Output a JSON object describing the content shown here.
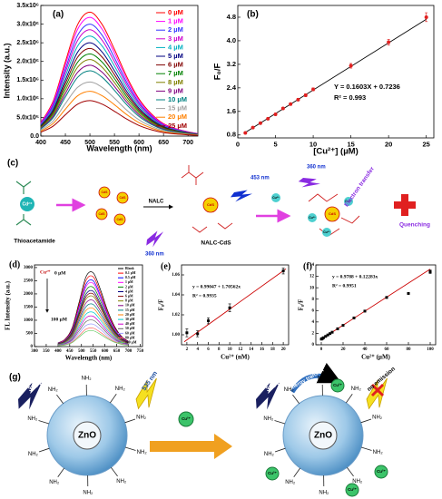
{
  "chart_data": [
    {
      "type": "line",
      "label": "(a)",
      "xlabel": "Wavelength  (nm)",
      "ylabel": "Intensity (a.u.)",
      "legend": "upper right",
      "x": [
        400,
        425,
        450,
        475,
        500,
        525,
        550,
        575,
        600,
        625,
        650,
        675,
        700,
        720
      ],
      "series": [
        {
          "name": "0 µM",
          "color": "#ff0000",
          "values": [
            365000,
            930000,
            1992000,
            2988000,
            3320000,
            2988000,
            2324000,
            1594000,
            996000,
            598000,
            332000,
            199000,
            116000,
            66000
          ]
        },
        {
          "name": "1 µM",
          "color": "#ff00ff",
          "values": [
            350000,
            890000,
            1908000,
            2862000,
            3180000,
            2862000,
            2226000,
            1526000,
            954000,
            572000,
            318000,
            191000,
            111000,
            64000
          ]
        },
        {
          "name": "2 µM",
          "color": "#3333ff",
          "values": [
            330000,
            840000,
            1800000,
            2700000,
            3000000,
            2700000,
            2100000,
            1440000,
            900000,
            540000,
            300000,
            180000,
            105000,
            60000
          ]
        },
        {
          "name": "3 µM",
          "color": "#cc00cc",
          "values": [
            314000,
            798000,
            1710000,
            2565000,
            2850000,
            2565000,
            1995000,
            1368000,
            855000,
            513000,
            285000,
            171000,
            100000,
            57000
          ]
        },
        {
          "name": "4 µM",
          "color": "#00b0c0",
          "values": [
            295000,
            750000,
            1608000,
            2412000,
            2680000,
            2412000,
            1876000,
            1286000,
            804000,
            482000,
            268000,
            161000,
            94000,
            54000
          ]
        },
        {
          "name": "5 µM",
          "color": "#000080",
          "values": [
            275000,
            700000,
            1500000,
            2250000,
            2500000,
            2250000,
            1750000,
            1200000,
            750000,
            450000,
            250000,
            150000,
            88000,
            50000
          ]
        },
        {
          "name": "6 µM",
          "color": "#800000",
          "values": [
            259000,
            658000,
            1410000,
            2115000,
            2350000,
            2115000,
            1645000,
            1128000,
            705000,
            423000,
            235000,
            141000,
            82000,
            47000
          ]
        },
        {
          "name": "7 µM",
          "color": "#008000",
          "values": [
            242000,
            616000,
            1320000,
            1980000,
            2200000,
            1980000,
            1540000,
            1056000,
            660000,
            396000,
            220000,
            132000,
            77000,
            44000
          ]
        },
        {
          "name": "8 µM",
          "color": "#808000",
          "values": [
            226000,
            574000,
            1230000,
            1845000,
            2050000,
            1845000,
            1435000,
            984000,
            615000,
            369000,
            205000,
            123000,
            72000,
            41000
          ]
        },
        {
          "name": "9 µM",
          "color": "#800080",
          "values": [
            209000,
            532000,
            1140000,
            1710000,
            1900000,
            1710000,
            1330000,
            912000,
            570000,
            342000,
            190000,
            114000,
            67000,
            38000
          ]
        },
        {
          "name": "10 µM",
          "color": "#008080",
          "values": [
            193000,
            490000,
            1050000,
            1575000,
            1750000,
            1575000,
            1225000,
            840000,
            525000,
            315000,
            175000,
            105000,
            61000,
            35000
          ]
        },
        {
          "name": "15 µM",
          "color": "#a0a0a0",
          "values": [
            160000,
            406000,
            870000,
            1305000,
            1450000,
            1305000,
            1015000,
            696000,
            435000,
            261000,
            145000,
            87000,
            51000,
            29000
          ]
        },
        {
          "name": "20 µM",
          "color": "#ff8000",
          "values": [
            132000,
            336000,
            720000,
            1080000,
            1200000,
            1080000,
            840000,
            576000,
            360000,
            216000,
            120000,
            72000,
            42000,
            24000
          ]
        },
        {
          "name": "25 µM",
          "color": "#a00000",
          "values": [
            105000,
            266000,
            570000,
            855000,
            950000,
            855000,
            665000,
            456000,
            285000,
            171000,
            95000,
            57000,
            33000,
            19000
          ]
        }
      ],
      "xlim": [
        400,
        720
      ],
      "xticks": [
        400,
        450,
        500,
        550,
        600,
        650,
        700
      ],
      "ylim": [
        0,
        3500000
      ],
      "yticks": [
        {
          "value": 0,
          "label": "0.0"
        },
        {
          "value": 500000,
          "label": "5.0x10⁵"
        },
        {
          "value": 1000000,
          "label": "1.0x10⁶"
        },
        {
          "value": 1500000,
          "label": "1.5x10⁶"
        },
        {
          "value": 2000000,
          "label": "2.0x10⁶"
        },
        {
          "value": 2500000,
          "label": "2.5x10⁶"
        },
        {
          "value": 3000000,
          "label": "3.0x10⁶"
        },
        {
          "value": 3500000,
          "label": "3.5x10⁶"
        }
      ]
    },
    {
      "type": "scatter",
      "label": "(b)",
      "xlabel": "[Cu²⁺]  (µM)",
      "ylabel": "F₀/F",
      "color": "#e02020",
      "marker": "circle",
      "x": [
        1,
        2,
        3,
        4,
        5,
        6,
        7,
        8,
        9,
        10,
        15,
        20,
        25
      ],
      "values": [
        0.87,
        1.05,
        1.2,
        1.35,
        1.5,
        1.7,
        1.85,
        2.0,
        2.15,
        2.35,
        3.15,
        3.95,
        4.8
      ],
      "errors": [
        0.03,
        0.03,
        0.03,
        0.03,
        0.04,
        0.04,
        0.04,
        0.04,
        0.05,
        0.05,
        0.08,
        0.1,
        0.15
      ],
      "fit": {
        "x": [
          1,
          25
        ],
        "y": [
          0.884,
          4.731
        ],
        "color": "#000000"
      },
      "annotations": [
        "Y = 0.1603X + 0.7236",
        "R² = 0.993"
      ],
      "xlim": [
        0,
        26
      ],
      "xticks": [
        0,
        5,
        10,
        15,
        20,
        25
      ],
      "ylim": [
        0.7,
        5.2
      ],
      "yticks": [
        0.8,
        1.6,
        2.4,
        3.2,
        {
          "value": 4,
          "label": "4.0"
        },
        4.8
      ]
    },
    {
      "type": "line",
      "label": "(d)",
      "xlabel": "Wavelength (nm)",
      "ylabel": "FL Intensity (a.u.)",
      "legend": "right",
      "annotations": [
        "Cu²⁺",
        "0 µM",
        "100 µM"
      ],
      "x": [
        400,
        430,
        460,
        490,
        520,
        550,
        580,
        610,
        640,
        670,
        700
      ],
      "series": [
        {
          "name": "Blank",
          "color": "#000000",
          "values": [
            140,
            280,
            700,
            1680,
            2660,
            2800,
            2184,
            1400,
            784,
            392,
            196
          ]
        },
        {
          "name": "0.1 µM",
          "color": "#ff0000",
          "values": [
            133,
            265,
            663,
            1590,
            2518,
            2650,
            2067,
            1325,
            742,
            371,
            186
          ]
        },
        {
          "name": "0.5 µM",
          "color": "#0000ff",
          "values": [
            125,
            250,
            625,
            1500,
            2375,
            2500,
            1950,
            1250,
            700,
            350,
            175
          ]
        },
        {
          "name": "1 µM",
          "color": "#ff00ff",
          "values": [
            120,
            240,
            600,
            1440,
            2280,
            2400,
            1872,
            1200,
            672,
            336,
            168
          ]
        },
        {
          "name": "2 µM",
          "color": "#008000",
          "values": [
            113,
            225,
            563,
            1350,
            2138,
            2250,
            1755,
            1125,
            630,
            315,
            158
          ]
        },
        {
          "name": "4 µM",
          "color": "#000080",
          "values": [
            105,
            210,
            525,
            1260,
            1995,
            2100,
            1638,
            1050,
            588,
            294,
            147
          ]
        },
        {
          "name": "6 µM",
          "color": "#800000",
          "values": [
            100,
            200,
            500,
            1200,
            1900,
            2000,
            1560,
            1000,
            560,
            280,
            140
          ]
        },
        {
          "name": "8 µM",
          "color": "#808000",
          "values": [
            95,
            190,
            475,
            1140,
            1805,
            1900,
            1482,
            950,
            532,
            266,
            133
          ]
        },
        {
          "name": "10 µM",
          "color": "#800080",
          "values": [
            88,
            175,
            438,
            1050,
            1663,
            1750,
            1365,
            875,
            490,
            245,
            123
          ]
        },
        {
          "name": "15 µM",
          "color": "#008080",
          "values": [
            80,
            160,
            400,
            960,
            1520,
            1600,
            1248,
            800,
            448,
            224,
            112
          ]
        },
        {
          "name": "20 µM",
          "color": "#ff8000",
          "values": [
            73,
            145,
            363,
            870,
            1378,
            1450,
            1131,
            725,
            406,
            203,
            102
          ]
        },
        {
          "name": "30 µM",
          "color": "#00cccc",
          "values": [
            65,
            130,
            325,
            780,
            1235,
            1300,
            1014,
            650,
            364,
            182,
            91
          ]
        },
        {
          "name": "40 µM",
          "color": "#cc00cc",
          "values": [
            58,
            115,
            288,
            690,
            1093,
            1150,
            897,
            575,
            322,
            161,
            81
          ]
        },
        {
          "name": "50 µM",
          "color": "#666666",
          "values": [
            50,
            100,
            250,
            600,
            950,
            1000,
            780,
            500,
            280,
            140,
            70
          ]
        },
        {
          "name": "60 µM",
          "color": "#9999ff",
          "values": [
            43,
            85,
            213,
            510,
            808,
            850,
            663,
            425,
            238,
            119,
            60
          ]
        },
        {
          "name": "80 µM",
          "color": "#ff6666",
          "values": [
            35,
            70,
            175,
            420,
            665,
            700,
            546,
            350,
            196,
            98,
            49
          ]
        },
        {
          "name": "100 µM",
          "color": "#66cc66",
          "values": [
            30,
            60,
            150,
            360,
            570,
            600,
            468,
            300,
            168,
            84,
            42
          ]
        }
      ],
      "xlim": [
        300,
        760
      ],
      "xticks": [
        300,
        350,
        400,
        450,
        500,
        550,
        600,
        650,
        700,
        750
      ],
      "ylim": [
        0,
        3100
      ],
      "yticks": [
        0,
        500,
        1000,
        1500,
        2000,
        2500,
        3000
      ]
    },
    {
      "type": "scatter",
      "label": "(e)",
      "xlabel": "Cu²⁺ (nM)",
      "ylabel": "F₀/F",
      "color": "#000000",
      "marker": "square",
      "x": [
        2,
        4,
        6,
        10,
        20
      ],
      "values": [
        1.002,
        1.001,
        1.014,
        1.027,
        1.064
      ],
      "errors": [
        0.004,
        0.003,
        0.003,
        0.004,
        0.003
      ],
      "fit": {
        "x": [
          1.5,
          20.5
        ],
        "y": [
          0.993,
          1.066
        ],
        "color": "#cc0000"
      },
      "annotations": [
        "y = 0.99047 + 1.70562x",
        "R² = 0.9935"
      ],
      "xlim": [
        1,
        21
      ],
      "xticks": [
        2,
        4,
        6,
        8,
        10,
        12,
        14,
        16,
        18,
        20
      ],
      "ylim": [
        0.99,
        1.07
      ],
      "yticks": [
        {
          "value": 1,
          "label": "1.00"
        },
        1.02,
        1.04,
        1.06
      ]
    },
    {
      "type": "scatter",
      "label": "(f)",
      "xlabel": "Cu²⁺ (µM)",
      "ylabel": "F₀/F",
      "color": "#000000",
      "marker": "square",
      "x": [
        0.1,
        0.5,
        1,
        2,
        4,
        6,
        8,
        10,
        15,
        20,
        30,
        40,
        60,
        80,
        100
      ],
      "values": [
        0.99,
        1.04,
        1.1,
        1.23,
        1.47,
        1.72,
        1.96,
        2.2,
        2.8,
        3.4,
        4.7,
        5.9,
        8.3,
        9.0,
        12.8
      ],
      "errors": [
        0.05,
        0.05,
        0.05,
        0.05,
        0.05,
        0.06,
        0.06,
        0.08,
        0.08,
        0.1,
        0.1,
        0.12,
        0.15,
        0.15,
        0.3
      ],
      "fit": {
        "x": [
          0,
          100
        ],
        "y": [
          0.98,
          13.26
        ],
        "color": "#cc0000"
      },
      "annotations": [
        "y = 0.9788 + 0.12283x",
        "R² = 0.9951"
      ],
      "xlim": [
        -5,
        105
      ],
      "xticks": [
        0,
        20,
        40,
        60,
        80,
        100
      ],
      "ylim": [
        0,
        14
      ],
      "yticks": [
        0,
        2,
        4,
        6,
        8,
        10,
        12,
        14
      ]
    }
  ],
  "diagram_c": {
    "label": "(c)",
    "thioacetamide": "Thioacetamide",
    "cd_ion": "Cd²⁺",
    "cds": "CdS",
    "nalc": "NALC",
    "nalc_cds": "NALC-CdS",
    "emission": "453 nm",
    "excitation": "360 nm",
    "cu_ion": "Cu²⁺",
    "electron_transfer": "Electron transfer",
    "quenching": "Quenching"
  },
  "diagram_g": {
    "label": "(g)",
    "core": "ZnO",
    "amine": "NH₂",
    "excitation": "350 nm",
    "emission": "535 nm",
    "cu_ion": "Cu²⁺",
    "energy_transfer": "energy transfer",
    "no_emission": "no emission"
  }
}
